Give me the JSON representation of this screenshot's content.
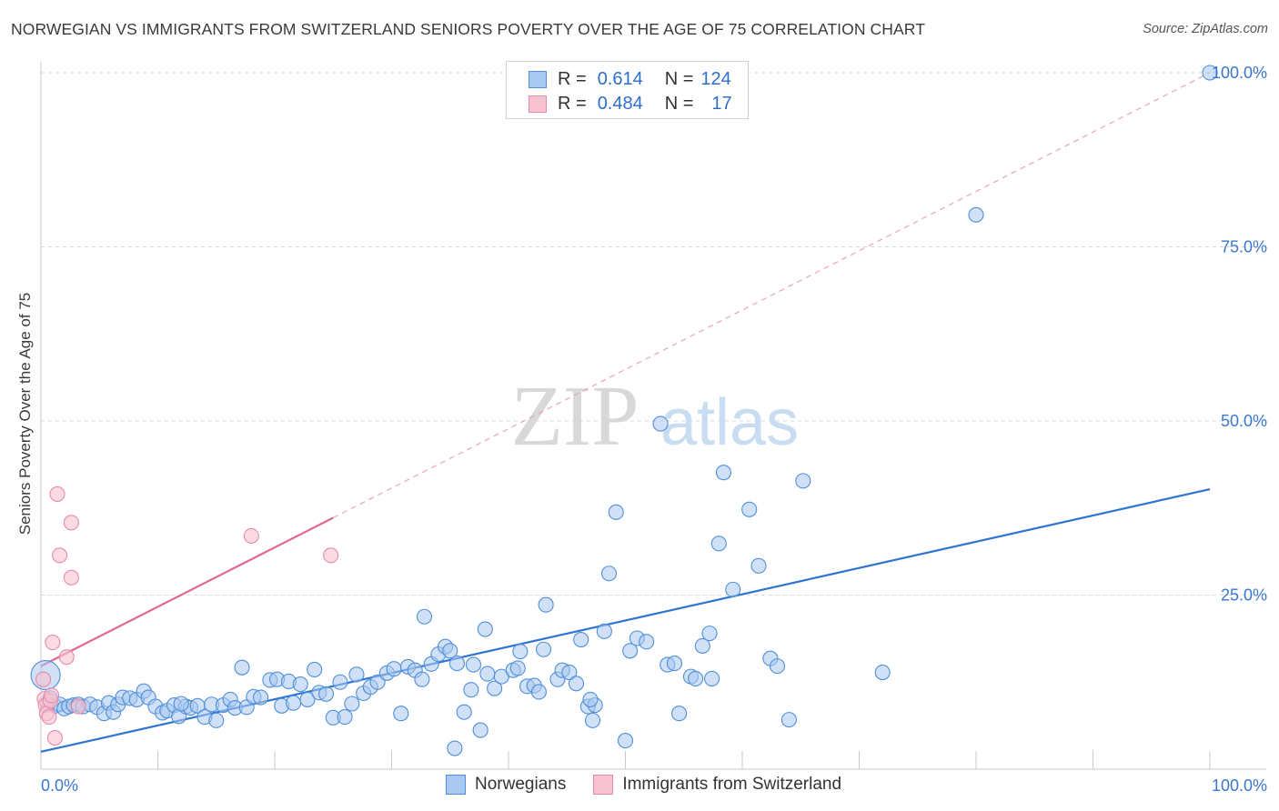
{
  "title": "NORWEGIAN VS IMMIGRANTS FROM SWITZERLAND SENIORS POVERTY OVER THE AGE OF 75 CORRELATION CHART",
  "source": "Source: ZipAtlas.com",
  "watermark": {
    "zip": "ZIP",
    "atlas": "atlas"
  },
  "legend": {
    "rows": [
      {
        "r_label": "R =",
        "r_value": "0.614",
        "n_label": "N =",
        "n_value": "124"
      },
      {
        "r_label": "R =",
        "r_value": "0.484",
        "n_label": "N =",
        "n_value": "17"
      }
    ]
  },
  "bottom_legend": [
    "Norwegians",
    "Immigrants from Switzerland"
  ],
  "colors": {
    "blue_fill": "#a9c8f0",
    "blue_stroke": "#4f8fd8",
    "blue_line": "#2f74d0",
    "pink_fill": "#f7c3d2",
    "pink_stroke": "#e88aa6",
    "pink_line": "#e06a92",
    "grid": "#d8d8d8",
    "tick_label": "#3a78d0"
  },
  "chart_data": {
    "type": "scatter",
    "xlabel": "",
    "ylabel": "Seniors Poverty Over the Age of 75",
    "xlim": [
      0,
      100
    ],
    "ylim": [
      0,
      100
    ],
    "x_tick_labels": [
      "0.0%",
      "100.0%"
    ],
    "y_tick_labels": [
      "25.0%",
      "50.0%",
      "75.0%",
      "100.0%"
    ],
    "y_ticks": [
      25,
      50,
      75,
      100
    ],
    "grid": true,
    "series": [
      {
        "name": "Norwegians",
        "r": 0.614,
        "n": 124,
        "trend": {
          "x": [
            0,
            100
          ],
          "y": [
            2.5,
            40.2
          ]
        },
        "points": [
          [
            0.4,
            13.5
          ],
          [
            0.6,
            9.4
          ],
          [
            0.8,
            10.2
          ],
          [
            1.2,
            9.1
          ],
          [
            1.6,
            9.3
          ],
          [
            2.0,
            8.7
          ],
          [
            2.4,
            9.0
          ],
          [
            2.8,
            9.2
          ],
          [
            3.2,
            9.3
          ],
          [
            3.6,
            9.0
          ],
          [
            4.2,
            9.3
          ],
          [
            4.8,
            8.9
          ],
          [
            5.4,
            8.0
          ],
          [
            5.8,
            9.5
          ],
          [
            6.2,
            8.2
          ],
          [
            6.6,
            9.3
          ],
          [
            7.0,
            10.3
          ],
          [
            7.6,
            10.2
          ],
          [
            8.2,
            10.0
          ],
          [
            8.8,
            11.2
          ],
          [
            9.2,
            10.3
          ],
          [
            9.8,
            9.0
          ],
          [
            10.4,
            8.1
          ],
          [
            10.8,
            8.4
          ],
          [
            11.4,
            9.2
          ],
          [
            11.8,
            7.6
          ],
          [
            12.4,
            9.0
          ],
          [
            12.8,
            8.8
          ],
          [
            13.4,
            9.1
          ],
          [
            14.0,
            7.5
          ],
          [
            14.6,
            9.3
          ],
          [
            15.0,
            7.0
          ],
          [
            15.6,
            9.2
          ],
          [
            16.2,
            10.0
          ],
          [
            16.6,
            8.8
          ],
          [
            17.2,
            14.6
          ],
          [
            17.6,
            8.9
          ],
          [
            18.2,
            10.4
          ],
          [
            18.8,
            10.3
          ],
          [
            19.6,
            12.8
          ],
          [
            20.2,
            12.9
          ],
          [
            20.6,
            9.1
          ],
          [
            21.2,
            12.6
          ],
          [
            21.6,
            9.5
          ],
          [
            22.2,
            12.2
          ],
          [
            22.8,
            10.0
          ],
          [
            23.4,
            14.3
          ],
          [
            23.8,
            11.0
          ],
          [
            24.4,
            10.8
          ],
          [
            25.0,
            7.4
          ],
          [
            25.6,
            12.5
          ],
          [
            26.0,
            7.5
          ],
          [
            26.6,
            9.4
          ],
          [
            27.0,
            13.6
          ],
          [
            27.6,
            10.9
          ],
          [
            28.2,
            11.8
          ],
          [
            28.8,
            12.5
          ],
          [
            29.6,
            13.8
          ],
          [
            30.2,
            14.4
          ],
          [
            30.8,
            8.0
          ],
          [
            31.4,
            14.7
          ],
          [
            32.0,
            14.2
          ],
          [
            32.6,
            12.9
          ],
          [
            32.8,
            21.9
          ],
          [
            33.4,
            15.1
          ],
          [
            34.0,
            16.5
          ],
          [
            34.6,
            17.6
          ],
          [
            35.0,
            17.0
          ],
          [
            35.6,
            15.2
          ],
          [
            35.4,
            3.0
          ],
          [
            36.2,
            8.2
          ],
          [
            36.8,
            11.4
          ],
          [
            37.6,
            5.6
          ],
          [
            38.2,
            13.7
          ],
          [
            38.8,
            11.6
          ],
          [
            39.4,
            13.3
          ],
          [
            38.0,
            20.1
          ],
          [
            40.4,
            14.2
          ],
          [
            40.8,
            14.5
          ],
          [
            41.0,
            16.9
          ],
          [
            41.6,
            11.9
          ],
          [
            42.2,
            12.0
          ],
          [
            42.6,
            11.1
          ],
          [
            43.0,
            17.2
          ],
          [
            43.2,
            23.6
          ],
          [
            44.2,
            12.9
          ],
          [
            44.6,
            14.2
          ],
          [
            45.2,
            13.9
          ],
          [
            45.8,
            12.3
          ],
          [
            46.2,
            18.6
          ],
          [
            46.8,
            9.0
          ],
          [
            47.2,
            7.0
          ],
          [
            47.4,
            9.2
          ],
          [
            48.2,
            19.8
          ],
          [
            48.6,
            28.1
          ],
          [
            49.2,
            36.9
          ],
          [
            50.0,
            4.1
          ],
          [
            50.4,
            17.0
          ],
          [
            51.0,
            18.8
          ],
          [
            51.8,
            18.3
          ],
          [
            53.0,
            49.6
          ],
          [
            53.6,
            15.0
          ],
          [
            54.2,
            15.2
          ],
          [
            54.6,
            8.0
          ],
          [
            55.6,
            13.3
          ],
          [
            56.0,
            13.0
          ],
          [
            56.6,
            17.7
          ],
          [
            57.2,
            19.5
          ],
          [
            58.0,
            32.4
          ],
          [
            58.4,
            42.6
          ],
          [
            59.2,
            25.8
          ],
          [
            60.6,
            37.3
          ],
          [
            61.4,
            29.2
          ],
          [
            62.4,
            15.9
          ],
          [
            63.0,
            14.8
          ],
          [
            64.0,
            7.1
          ],
          [
            65.2,
            41.4
          ],
          [
            72.0,
            13.9
          ],
          [
            80.0,
            79.6
          ],
          [
            100.0,
            100.0
          ],
          [
            57.4,
            13.0
          ],
          [
            12.0,
            9.4
          ],
          [
            37.0,
            15.0
          ],
          [
            47.0,
            10.0
          ]
        ]
      },
      {
        "name": "Immigrants from Switzerland",
        "r": 0.484,
        "n": 17,
        "trend": {
          "x": [
            0,
            25
          ],
          "y": [
            14.8,
            36.1
          ]
        },
        "trend_dashed": {
          "x": [
            25,
            100
          ],
          "y": [
            36.1,
            100
          ]
        },
        "points": [
          [
            0.2,
            12.9
          ],
          [
            0.3,
            10.1
          ],
          [
            0.4,
            9.2
          ],
          [
            0.5,
            8.0
          ],
          [
            0.7,
            7.5
          ],
          [
            0.8,
            9.8
          ],
          [
            0.9,
            10.6
          ],
          [
            1.0,
            18.2
          ],
          [
            1.2,
            4.5
          ],
          [
            1.4,
            39.5
          ],
          [
            1.6,
            30.7
          ],
          [
            2.2,
            16.1
          ],
          [
            2.6,
            35.4
          ],
          [
            2.6,
            27.5
          ],
          [
            3.2,
            9.0
          ],
          [
            18.0,
            33.5
          ],
          [
            24.8,
            30.7
          ]
        ]
      }
    ]
  }
}
